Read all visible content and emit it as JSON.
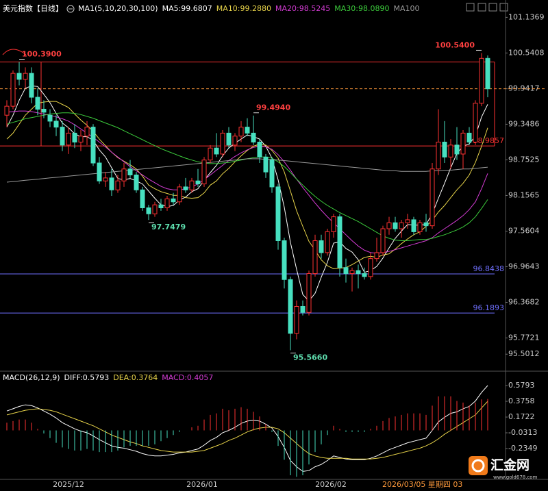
{
  "chart_data": [
    {
      "type": "candlestick",
      "title": "美元指数【日线】",
      "indicator_label": "MA1(5,10,20,30,100)",
      "up_color": "#ff3232",
      "down_color": "#47e0c0",
      "open": [
        99.5,
        99.65,
        100.2,
        100.1,
        100.2,
        99.8,
        99.6,
        99.5,
        99.4,
        99.3,
        99.0,
        99.2,
        99.05,
        99.15,
        99.3,
        98.7,
        98.4,
        98.45,
        98.25,
        98.4,
        98.6,
        98.5,
        98.25,
        97.95,
        97.85,
        98.0,
        97.95,
        98.1,
        98.05,
        98.3,
        98.25,
        98.4,
        98.35,
        98.75,
        98.95,
        98.85,
        99.2,
        99.0,
        99.15,
        99.3,
        99.2,
        99.05,
        98.8,
        98.75,
        98.3,
        97.4,
        96.75,
        95.85,
        96.3,
        96.2,
        96.85,
        97.4,
        97.2,
        97.55,
        97.8,
        96.95,
        96.85,
        96.9,
        96.85,
        96.8,
        97.1,
        97.2,
        97.6,
        97.7,
        97.6,
        97.7,
        97.75,
        97.55,
        97.7,
        97.65,
        98.6,
        99.05,
        98.8,
        99.0,
        98.85,
        99.2,
        99.05,
        99.7,
        100.45
      ],
      "high": [
        99.75,
        100.25,
        100.39,
        100.3,
        100.3,
        99.95,
        99.75,
        99.6,
        99.5,
        99.4,
        99.3,
        99.35,
        99.25,
        99.4,
        99.35,
        98.8,
        98.55,
        98.6,
        98.5,
        98.7,
        98.75,
        98.55,
        98.3,
        98.0,
        98.05,
        98.1,
        98.15,
        98.2,
        98.35,
        98.45,
        98.45,
        98.6,
        98.8,
        99.0,
        99.2,
        99.25,
        99.3,
        99.2,
        99.4,
        99.45,
        99.494,
        99.1,
        98.85,
        98.8,
        98.35,
        97.45,
        96.8,
        96.4,
        96.4,
        96.9,
        97.5,
        97.5,
        97.6,
        97.85,
        97.85,
        97.1,
        96.95,
        97.0,
        96.95,
        97.2,
        97.45,
        97.65,
        97.8,
        97.8,
        97.75,
        97.85,
        97.8,
        97.75,
        97.85,
        98.7,
        99.6,
        99.4,
        99.1,
        99.3,
        99.25,
        99.3,
        99.75,
        100.54,
        100.5
      ],
      "low": [
        99.3,
        99.6,
        100.0,
        99.95,
        99.7,
        99.5,
        99.45,
        99.3,
        99.15,
        98.9,
        98.85,
        98.95,
        98.9,
        99.0,
        98.65,
        98.35,
        98.3,
        98.15,
        98.2,
        98.3,
        98.45,
        98.2,
        97.9,
        97.7479,
        97.8,
        97.9,
        97.9,
        98.0,
        98.0,
        98.2,
        98.2,
        98.3,
        98.3,
        98.7,
        98.8,
        98.8,
        98.95,
        98.9,
        99.05,
        99.15,
        99.0,
        98.7,
        98.45,
        98.2,
        97.25,
        96.6,
        95.566,
        95.75,
        96.15,
        96.15,
        96.8,
        97.1,
        97.15,
        97.45,
        96.8,
        96.7,
        96.55,
        96.6,
        96.75,
        96.75,
        97.05,
        97.15,
        97.5,
        97.55,
        97.45,
        97.6,
        97.5,
        97.5,
        97.55,
        97.6,
        98.5,
        98.7,
        98.6,
        98.75,
        98.6,
        99.0,
        99.0,
        99.65,
        99.8
      ],
      "close": [
        99.65,
        100.2,
        100.1,
        100.2,
        99.8,
        99.6,
        99.55,
        99.4,
        99.3,
        99.0,
        99.2,
        99.05,
        99.15,
        99.3,
        98.7,
        98.4,
        98.45,
        98.25,
        98.4,
        98.6,
        98.5,
        98.25,
        97.95,
        97.85,
        98.0,
        97.95,
        98.1,
        98.05,
        98.3,
        98.25,
        98.4,
        98.35,
        98.75,
        98.95,
        98.85,
        99.2,
        99.0,
        99.15,
        99.3,
        99.2,
        99.05,
        98.8,
        98.55,
        98.3,
        97.4,
        96.75,
        95.85,
        96.3,
        96.2,
        96.85,
        97.4,
        97.2,
        97.55,
        97.8,
        96.95,
        96.85,
        96.9,
        96.85,
        96.8,
        97.1,
        97.2,
        97.6,
        97.7,
        97.6,
        97.7,
        97.75,
        97.55,
        97.7,
        97.65,
        98.6,
        99.05,
        98.8,
        99.0,
        98.85,
        99.2,
        99.05,
        99.7,
        100.45,
        99.9417
      ],
      "series": [
        {
          "name": "MA5:99.6807",
          "color": "#ffffff",
          "values": [
            99.3,
            99.5,
            99.75,
            99.95,
            99.99,
            99.98,
            99.85,
            99.71,
            99.53,
            99.37,
            99.29,
            99.19,
            99.14,
            99.14,
            99.08,
            98.92,
            98.8,
            98.62,
            98.44,
            98.42,
            98.44,
            98.4,
            98.35,
            98.23,
            98.11,
            98.0,
            97.97,
            97.99,
            98.08,
            98.13,
            98.22,
            98.27,
            98.41,
            98.54,
            98.66,
            98.82,
            98.95,
            99.03,
            99.1,
            99.17,
            99.14,
            99.1,
            98.98,
            98.78,
            98.42,
            97.96,
            97.37,
            96.92,
            96.5,
            96.39,
            96.52,
            96.79,
            97.04,
            97.36,
            97.38,
            97.27,
            97.21,
            97.08,
            96.87,
            96.9,
            96.97,
            97.11,
            97.28,
            97.44,
            97.56,
            97.67,
            97.66,
            97.66,
            97.67,
            97.85,
            98.11,
            98.36,
            98.62,
            98.86,
            98.98,
            99.02,
            99.15,
            99.47,
            99.6807
          ]
        },
        {
          "name": "MA10:99.2880",
          "color": "#e8d44a",
          "values": [
            99.1,
            99.2,
            99.35,
            99.5,
            99.6,
            99.7,
            99.72,
            99.73,
            99.73,
            99.68,
            99.63,
            99.52,
            99.42,
            99.33,
            99.23,
            99.1,
            98.99,
            98.88,
            98.79,
            98.73,
            98.67,
            98.6,
            98.48,
            98.33,
            98.27,
            98.22,
            98.19,
            98.16,
            98.16,
            98.12,
            98.11,
            98.12,
            98.2,
            98.33,
            98.4,
            98.52,
            98.61,
            98.72,
            98.82,
            98.91,
            98.98,
            99.02,
            99.0,
            98.91,
            98.78,
            98.55,
            98.23,
            97.9,
            97.64,
            97.39,
            97.24,
            97.08,
            96.98,
            96.93,
            96.94,
            96.95,
            97.0,
            97.06,
            97.12,
            97.14,
            97.12,
            97.16,
            97.18,
            97.26,
            97.35,
            97.43,
            97.5,
            97.55,
            97.64,
            97.74,
            97.88,
            97.99,
            98.12,
            98.25,
            98.36,
            98.5,
            98.71,
            98.98,
            99.288
          ]
        },
        {
          "name": "MA20:98.5245",
          "color": "#d43cd4",
          "values": [
            99.55,
            99.56,
            99.57,
            99.57,
            99.56,
            99.54,
            99.52,
            99.5,
            99.47,
            99.44,
            99.4,
            99.34,
            99.27,
            99.2,
            99.13,
            99.05,
            98.97,
            98.88,
            98.8,
            98.72,
            98.64,
            98.57,
            98.5,
            98.43,
            98.37,
            98.31,
            98.27,
            98.25,
            98.25,
            98.27,
            98.3,
            98.35,
            98.42,
            98.5,
            98.58,
            98.66,
            98.74,
            98.81,
            98.87,
            98.92,
            98.96,
            98.98,
            98.97,
            98.93,
            98.84,
            98.72,
            98.58,
            98.43,
            98.29,
            98.16,
            98.03,
            97.91,
            97.8,
            97.7,
            97.6,
            97.5,
            97.4,
            97.31,
            97.24,
            97.2,
            97.19,
            97.2,
            97.22,
            97.25,
            97.28,
            97.31,
            97.34,
            97.37,
            97.4,
            97.45,
            97.53,
            97.6,
            97.67,
            97.74,
            97.82,
            97.92,
            98.05,
            98.27,
            98.5245
          ]
        },
        {
          "name": "MA30:98.0890",
          "color": "#3ccc3c",
          "values": [
            99.35,
            99.38,
            99.41,
            99.44,
            99.46,
            99.48,
            99.5,
            99.52,
            99.53,
            99.54,
            99.54,
            99.53,
            99.51,
            99.48,
            99.45,
            99.41,
            99.37,
            99.33,
            99.29,
            99.24,
            99.19,
            99.14,
            99.09,
            99.04,
            98.99,
            98.94,
            98.9,
            98.86,
            98.82,
            98.78,
            98.75,
            98.72,
            98.7,
            98.69,
            98.69,
            98.7,
            98.71,
            98.73,
            98.75,
            98.77,
            98.79,
            98.8,
            98.8,
            98.78,
            98.72,
            98.64,
            98.54,
            98.43,
            98.33,
            98.23,
            98.14,
            98.06,
            97.99,
            97.93,
            97.87,
            97.82,
            97.77,
            97.72,
            97.66,
            97.6,
            97.54,
            97.48,
            97.44,
            97.41,
            97.4,
            97.4,
            97.41,
            97.42,
            97.42,
            97.44,
            97.47,
            97.5,
            97.54,
            97.58,
            97.63,
            97.7,
            97.8,
            97.94,
            98.089
          ]
        },
        {
          "name": "MA100",
          "color": "#9a9a9a",
          "values": [
            98.38,
            98.39,
            98.4,
            98.41,
            98.42,
            98.43,
            98.44,
            98.45,
            98.46,
            98.47,
            98.48,
            98.49,
            98.5,
            98.51,
            98.52,
            98.53,
            98.54,
            98.55,
            98.56,
            98.57,
            98.58,
            98.59,
            98.6,
            98.61,
            98.62,
            98.63,
            98.64,
            98.65,
            98.66,
            98.67,
            98.68,
            98.69,
            98.7,
            98.71,
            98.72,
            98.73,
            98.74,
            98.75,
            98.76,
            98.77,
            98.77,
            98.77,
            98.76,
            98.76,
            98.75,
            98.74,
            98.73,
            98.72,
            98.71,
            98.7,
            98.69,
            98.68,
            98.67,
            98.66,
            98.65,
            98.64,
            98.63,
            98.62,
            98.61,
            98.6,
            98.59,
            98.58,
            98.57,
            98.57,
            98.56,
            98.56,
            98.56,
            98.56,
            98.56,
            98.57,
            98.57,
            98.58,
            98.58,
            98.59,
            98.6,
            98.6,
            98.61,
            98.62,
            98.63
          ]
        }
      ],
      "ylim": [
        95.24,
        101.37
      ],
      "yticks": [
        101.1369,
        100.5408,
        99.9417,
        99.3486,
        98.7525,
        98.1565,
        97.5604,
        96.9643,
        96.3682,
        95.7721,
        95.5012
      ],
      "levels": [
        {
          "value": 100.39,
          "color": "#ff3232"
        },
        {
          "value": 98.9857,
          "color": "#ff3232",
          "labeled": true
        },
        {
          "value": 99.9417,
          "color": "#ff9a3c",
          "dashed": true
        },
        {
          "value": 96.8438,
          "color": "#7070ff",
          "labeled": true
        },
        {
          "value": 96.1893,
          "color": "#7070ff",
          "labeled": true
        }
      ],
      "annotations": [
        {
          "value": 100.39,
          "label": "100.3900",
          "color": "#ff4040"
        },
        {
          "value": 100.54,
          "label": "100.5400",
          "color": "#ff4040"
        },
        {
          "value": 99.494,
          "label": "99.4940",
          "color": "#ff4040"
        },
        {
          "value": 97.7479,
          "label": "97.7479",
          "color": "#5fe0b0"
        },
        {
          "value": 95.566,
          "label": "95.5660",
          "color": "#5fe0b0"
        }
      ]
    },
    {
      "type": "macd",
      "title": "MACD(26,12,9)",
      "series": [
        {
          "name": "DIFF:0.5793",
          "color": "#ffffff",
          "values": [
            0.25,
            0.28,
            0.31,
            0.33,
            0.32,
            0.29,
            0.25,
            0.21,
            0.16,
            0.1,
            0.06,
            0.02,
            -0.01,
            -0.03,
            -0.07,
            -0.12,
            -0.16,
            -0.2,
            -0.22,
            -0.23,
            -0.25,
            -0.27,
            -0.3,
            -0.32,
            -0.33,
            -0.33,
            -0.32,
            -0.31,
            -0.29,
            -0.28,
            -0.26,
            -0.24,
            -0.19,
            -0.13,
            -0.09,
            -0.03,
            0.0,
            0.04,
            0.09,
            0.12,
            0.13,
            0.12,
            0.08,
            0.03,
            -0.08,
            -0.22,
            -0.39,
            -0.47,
            -0.53,
            -0.52,
            -0.47,
            -0.44,
            -0.39,
            -0.33,
            -0.35,
            -0.37,
            -0.38,
            -0.38,
            -0.38,
            -0.36,
            -0.33,
            -0.29,
            -0.25,
            -0.22,
            -0.19,
            -0.16,
            -0.14,
            -0.12,
            -0.1,
            0.0,
            0.11,
            0.17,
            0.22,
            0.24,
            0.28,
            0.31,
            0.38,
            0.49,
            0.5793
          ]
        },
        {
          "name": "DEA:0.3764",
          "color": "#e8d44a",
          "values": [
            0.2,
            0.22,
            0.24,
            0.26,
            0.27,
            0.28,
            0.27,
            0.26,
            0.24,
            0.21,
            0.18,
            0.15,
            0.12,
            0.09,
            0.06,
            0.02,
            -0.02,
            -0.06,
            -0.09,
            -0.12,
            -0.15,
            -0.17,
            -0.2,
            -0.22,
            -0.24,
            -0.26,
            -0.27,
            -0.28,
            -0.28,
            -0.28,
            -0.28,
            -0.27,
            -0.26,
            -0.23,
            -0.2,
            -0.17,
            -0.13,
            -0.1,
            -0.06,
            -0.02,
            0.01,
            0.03,
            0.04,
            0.04,
            0.02,
            -0.03,
            -0.1,
            -0.17,
            -0.24,
            -0.3,
            -0.33,
            -0.35,
            -0.36,
            -0.36,
            -0.36,
            -0.36,
            -0.37,
            -0.37,
            -0.37,
            -0.37,
            -0.36,
            -0.35,
            -0.33,
            -0.31,
            -0.29,
            -0.27,
            -0.25,
            -0.23,
            -0.2,
            -0.16,
            -0.11,
            -0.05,
            0.0,
            0.05,
            0.1,
            0.15,
            0.2,
            0.29,
            0.3764
          ]
        },
        {
          "name": "MACD:0.4057",
          "color": "#d43cd4",
          "bars": true,
          "up_color": "#ff3232",
          "down_color": "#47e0c0",
          "values": [
            0.1,
            0.12,
            0.14,
            0.14,
            0.1,
            0.02,
            -0.04,
            -0.1,
            -0.16,
            -0.22,
            -0.24,
            -0.26,
            -0.26,
            -0.24,
            -0.26,
            -0.28,
            -0.28,
            -0.28,
            -0.26,
            -0.22,
            -0.2,
            -0.2,
            -0.2,
            -0.2,
            -0.18,
            -0.14,
            -0.1,
            -0.06,
            -0.02,
            0.0,
            0.04,
            0.06,
            0.14,
            0.2,
            0.22,
            0.28,
            0.26,
            0.28,
            0.3,
            0.28,
            0.24,
            0.18,
            0.08,
            -0.02,
            -0.2,
            -0.38,
            -0.58,
            -0.6,
            -0.58,
            -0.44,
            -0.28,
            -0.18,
            -0.06,
            0.06,
            0.02,
            -0.02,
            -0.02,
            -0.02,
            -0.02,
            0.02,
            0.06,
            0.12,
            0.16,
            0.18,
            0.2,
            0.22,
            0.22,
            0.22,
            0.2,
            0.32,
            0.44,
            0.44,
            0.44,
            0.38,
            0.36,
            0.32,
            0.36,
            0.4,
            0.4057
          ]
        }
      ],
      "ylim": [
        -0.633,
        0.739
      ],
      "yticks": [
        0.5793,
        0.3758,
        0.1722,
        -0.0313,
        -0.2349
      ],
      "x_labels": [
        "2025/12",
        "2026/01",
        "2026/02"
      ],
      "cursor_label": "2026/03/05 星期四 03"
    }
  ],
  "brand": {
    "name": "汇金网",
    "url": "www.gold678.com"
  }
}
